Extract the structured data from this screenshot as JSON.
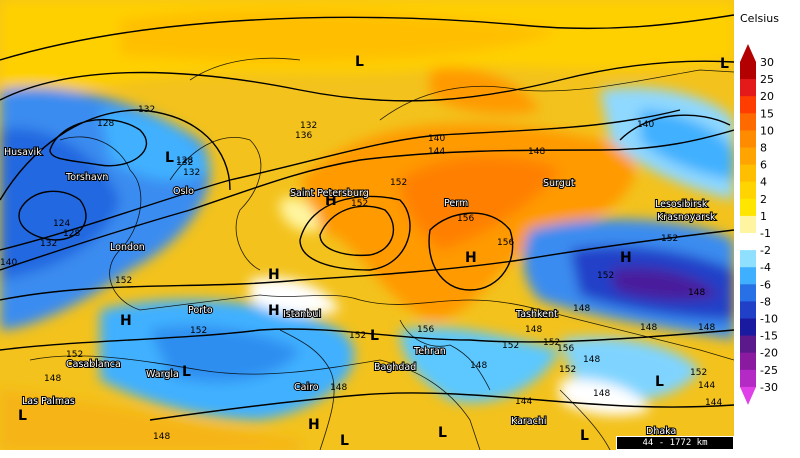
{
  "legend": {
    "unit": "Celsius",
    "ticks": [
      "30",
      "25",
      "20",
      "15",
      "10",
      "8",
      "6",
      "4",
      "2",
      "1",
      "-1",
      "-2",
      "-4",
      "-6",
      "-8",
      "-10",
      "-15",
      "-20",
      "-25",
      "-30"
    ],
    "colors": [
      "#b30000",
      "#e41a1a",
      "#ff3d00",
      "#ff6a00",
      "#ff8c00",
      "#ffa400",
      "#ffbf00",
      "#ffd400",
      "#ffe600",
      "#fff5a0",
      "#ffffff",
      "#8fe0ff",
      "#3fb0ff",
      "#2870e6",
      "#2040c8",
      "#1a1aa0",
      "#5a1a8c",
      "#8a1aa0",
      "#b42ac4",
      "#e040e8"
    ]
  },
  "map": {
    "scale_label": "44 - 1772 km",
    "cities": [
      {
        "name": "Husavik"
      },
      {
        "name": "Torshavn"
      },
      {
        "name": "Oslo"
      },
      {
        "name": "London"
      },
      {
        "name": "Saint Petersburg"
      },
      {
        "name": "Perm"
      },
      {
        "name": "Surgut"
      },
      {
        "name": "Lesosibirsk"
      },
      {
        "name": "Krasnoyarsk"
      },
      {
        "name": "Porto"
      },
      {
        "name": "Istanbul"
      },
      {
        "name": "Tashkent"
      },
      {
        "name": "Tehran"
      },
      {
        "name": "Baghdad"
      },
      {
        "name": "Casablanca"
      },
      {
        "name": "Wargla"
      },
      {
        "name": "Cairo"
      },
      {
        "name": "Las Palmas"
      },
      {
        "name": "Karachi"
      },
      {
        "name": "Dhaka"
      }
    ],
    "isobar_labels": [
      "132",
      "128",
      "132",
      "132",
      "136",
      "128",
      "132",
      "124",
      "128",
      "132",
      "140",
      "140",
      "144",
      "148",
      "152",
      "152",
      "156",
      "156",
      "152",
      "140",
      "152",
      "148",
      "148",
      "152",
      "156",
      "152",
      "152",
      "148",
      "152",
      "152",
      "156",
      "148",
      "148",
      "148",
      "152",
      "148",
      "144",
      "148",
      "144",
      "148",
      "148",
      "152",
      "152",
      "148",
      "144"
    ],
    "pressure_marks": [
      "L",
      "L",
      "H",
      "H",
      "H",
      "H",
      "L",
      "H",
      "L",
      "L",
      "H",
      "L",
      "L",
      "L",
      "H",
      "L",
      "L"
    ]
  }
}
